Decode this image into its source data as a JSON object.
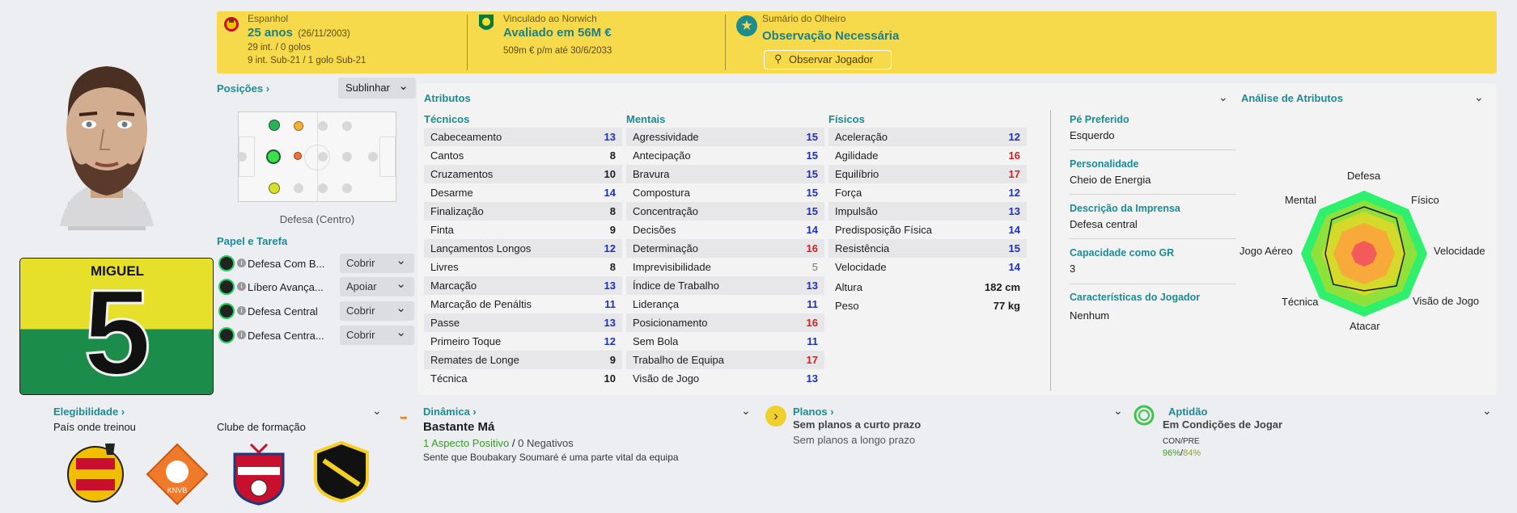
{
  "banner": {
    "nationality": "Espanhol",
    "age": "25 anos",
    "dob": "(26/11/2003)",
    "caps": "29 int. / 0 golos",
    "u21": "9 int. Sub-21 / 1 golo Sub-21",
    "club_line": "Vinculado ao Norwich",
    "value": "Avaliado em 56M €",
    "wage": "509m € p/m até 30/6/2033",
    "scout_title": "Sumário do Olheiro",
    "scout_status": "Observação Necessária",
    "scout_button": "Observar Jogador"
  },
  "player": {
    "shirt_name": "MIGUEL",
    "shirt_number": "5"
  },
  "positions": {
    "title": "Posições",
    "highlight_label": "Sublinhar",
    "position_label": "Defesa (Centro)"
  },
  "roles": {
    "title": "Papel e Tarefa",
    "items": [
      {
        "name": "Defesa Com B...",
        "duty": "Cobrir"
      },
      {
        "name": "Líbero Avança...",
        "duty": "Apoiar"
      },
      {
        "name": "Defesa Central",
        "duty": "Cobrir"
      },
      {
        "name": "Defesa Centra...",
        "duty": "Cobrir"
      }
    ]
  },
  "attributes": {
    "title": "Atributos",
    "technical_title": "Técnicos",
    "mental_title": "Mentais",
    "physical_title": "Físicos",
    "technical": [
      {
        "name": "Cabeceamento",
        "value": "13",
        "tone": "b"
      },
      {
        "name": "Cantos",
        "value": "8",
        "tone": "k"
      },
      {
        "name": "Cruzamentos",
        "value": "10",
        "tone": "k"
      },
      {
        "name": "Desarme",
        "value": "14",
        "tone": "b"
      },
      {
        "name": "Finalização",
        "value": "8",
        "tone": "k"
      },
      {
        "name": "Finta",
        "value": "9",
        "tone": "k"
      },
      {
        "name": "Lançamentos Longos",
        "value": "12",
        "tone": "b"
      },
      {
        "name": "Livres",
        "value": "8",
        "tone": "k"
      },
      {
        "name": "Marcação",
        "value": "13",
        "tone": "b"
      },
      {
        "name": "Marcação de Penáltis",
        "value": "11",
        "tone": "b"
      },
      {
        "name": "Passe",
        "value": "13",
        "tone": "b"
      },
      {
        "name": "Primeiro Toque",
        "value": "12",
        "tone": "b"
      },
      {
        "name": "Remates de Longe",
        "value": "9",
        "tone": "k"
      },
      {
        "name": "Técnica",
        "value": "10",
        "tone": "k"
      }
    ],
    "mental": [
      {
        "name": "Agressividade",
        "value": "15",
        "tone": "b"
      },
      {
        "name": "Antecipação",
        "value": "15",
        "tone": "b"
      },
      {
        "name": "Bravura",
        "value": "15",
        "tone": "b"
      },
      {
        "name": "Compostura",
        "value": "15",
        "tone": "b"
      },
      {
        "name": "Concentração",
        "value": "15",
        "tone": "b"
      },
      {
        "name": "Decisões",
        "value": "14",
        "tone": "b"
      },
      {
        "name": "Determinação",
        "value": "16",
        "tone": "r"
      },
      {
        "name": "Imprevisibilidade",
        "value": "5",
        "tone": "g"
      },
      {
        "name": "Índice de Trabalho",
        "value": "13",
        "tone": "b"
      },
      {
        "name": "Liderança",
        "value": "11",
        "tone": "b"
      },
      {
        "name": "Posicionamento",
        "value": "16",
        "tone": "r"
      },
      {
        "name": "Sem Bola",
        "value": "11",
        "tone": "b"
      },
      {
        "name": "Trabalho de Equipa",
        "value": "17",
        "tone": "r"
      },
      {
        "name": "Visão de Jogo",
        "value": "13",
        "tone": "b"
      }
    ],
    "physical": [
      {
        "name": "Aceleração",
        "value": "12",
        "tone": "b"
      },
      {
        "name": "Agilidade",
        "value": "16",
        "tone": "r"
      },
      {
        "name": "Equilíbrio",
        "value": "17",
        "tone": "r"
      },
      {
        "name": "Força",
        "value": "12",
        "tone": "b"
      },
      {
        "name": "Impulsão",
        "value": "13",
        "tone": "b"
      },
      {
        "name": "Predisposição Física",
        "value": "14",
        "tone": "b"
      },
      {
        "name": "Resistência",
        "value": "15",
        "tone": "b"
      },
      {
        "name": "Velocidade",
        "value": "14",
        "tone": "b"
      }
    ],
    "height_label": "Altura",
    "height_value": "182 cm",
    "weight_label": "Peso",
    "weight_value": "77 kg"
  },
  "info": {
    "foot_label": "Pé Preferido",
    "foot_value": "Esquerdo",
    "personality_label": "Personalidade",
    "personality_value": "Cheio de Energia",
    "press_label": "Descrição da Imprensa",
    "press_value": "Defesa central",
    "gk_label": "Capacidade como GR",
    "gk_value": "3",
    "traits_label": "Características do Jogador",
    "traits_value": "Nenhum"
  },
  "analysis": {
    "title": "Análise de Atributos",
    "labels": {
      "defesa": "Defesa",
      "fisico": "Físico",
      "velocidade": "Velocidade",
      "visao": "Visão de Jogo",
      "atacar": "Atacar",
      "tecnica": "Técnica",
      "aereo": "Jogo Aéreo",
      "mental": "Mental"
    }
  },
  "eligibility": {
    "title": "Elegibilidade",
    "trained_label": "País onde treinou",
    "formed_label": "Clube de formação"
  },
  "dynamics": {
    "title": "Dinâmica",
    "status": "Bastante Má",
    "positive": "1 Aspecto Positivo",
    "separator": "/",
    "negative": "0 Negativos",
    "note": "Sente que Boubakary Soumaré é uma parte vital da equipa"
  },
  "plans": {
    "title": "Planos",
    "short": "Sem planos a curto prazo",
    "long": "Sem planos a longo prazo"
  },
  "fitness": {
    "title": "Aptidão",
    "status": "Em Condições de Jogar",
    "label": "CON/PRE",
    "con": "96%",
    "separator": "/",
    "pre": "84%"
  },
  "colors": {
    "banner": "#f7d94c",
    "accent": "#1a8c95",
    "good": "#1d2fbd",
    "excellent": "#cf1f1f"
  }
}
